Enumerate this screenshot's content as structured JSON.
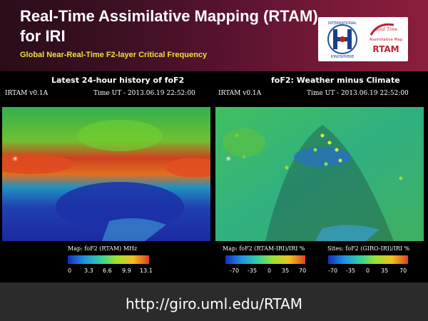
{
  "slide": {
    "title": "Real-Time Assimilative Mapping (RTAM) for IRI",
    "subtitle": "Global Near-Real-Time F2-layer Critical Frequency",
    "logo_left_text": "INTERNATIONAL IONOSPHERE",
    "logo_right_line1": "Real Time",
    "logo_right_line2": "Assimilative Map",
    "logo_right_line3": "RTAM",
    "url": "http://giro.uml.edu/RTAM"
  },
  "left_panel": {
    "heading": "Latest 24-hour history of foF2",
    "version": "IRTAM v0.1A",
    "time": "Time UT - 2013.06.19 22:52:00",
    "scale_label": "Map: foF2 (RTAM) MHz",
    "ticks": [
      "0",
      "3.3",
      "6.6",
      "9.9",
      "13.1"
    ]
  },
  "right_panel": {
    "heading": "foF2: Weather minus Climate",
    "version": "IRTAM v0.1A",
    "time": "Time UT - 2013.06.19 22:52:00",
    "scale_label_map": "Map: foF2 (RTAM-IRI)/IRI %",
    "scale_label_sites": "Sites: foF2 (GIRO-IRI)/IRI %",
    "ticks_map": [
      "-70",
      "-35",
      "0",
      "35",
      "70"
    ],
    "ticks_sites": [
      "-70",
      "-35",
      "0",
      "35",
      "70"
    ]
  },
  "colors": {
    "title_text": "#ffffff",
    "subtitle_text": "#f0e040",
    "footer_bg": "#2b2b2b"
  }
}
